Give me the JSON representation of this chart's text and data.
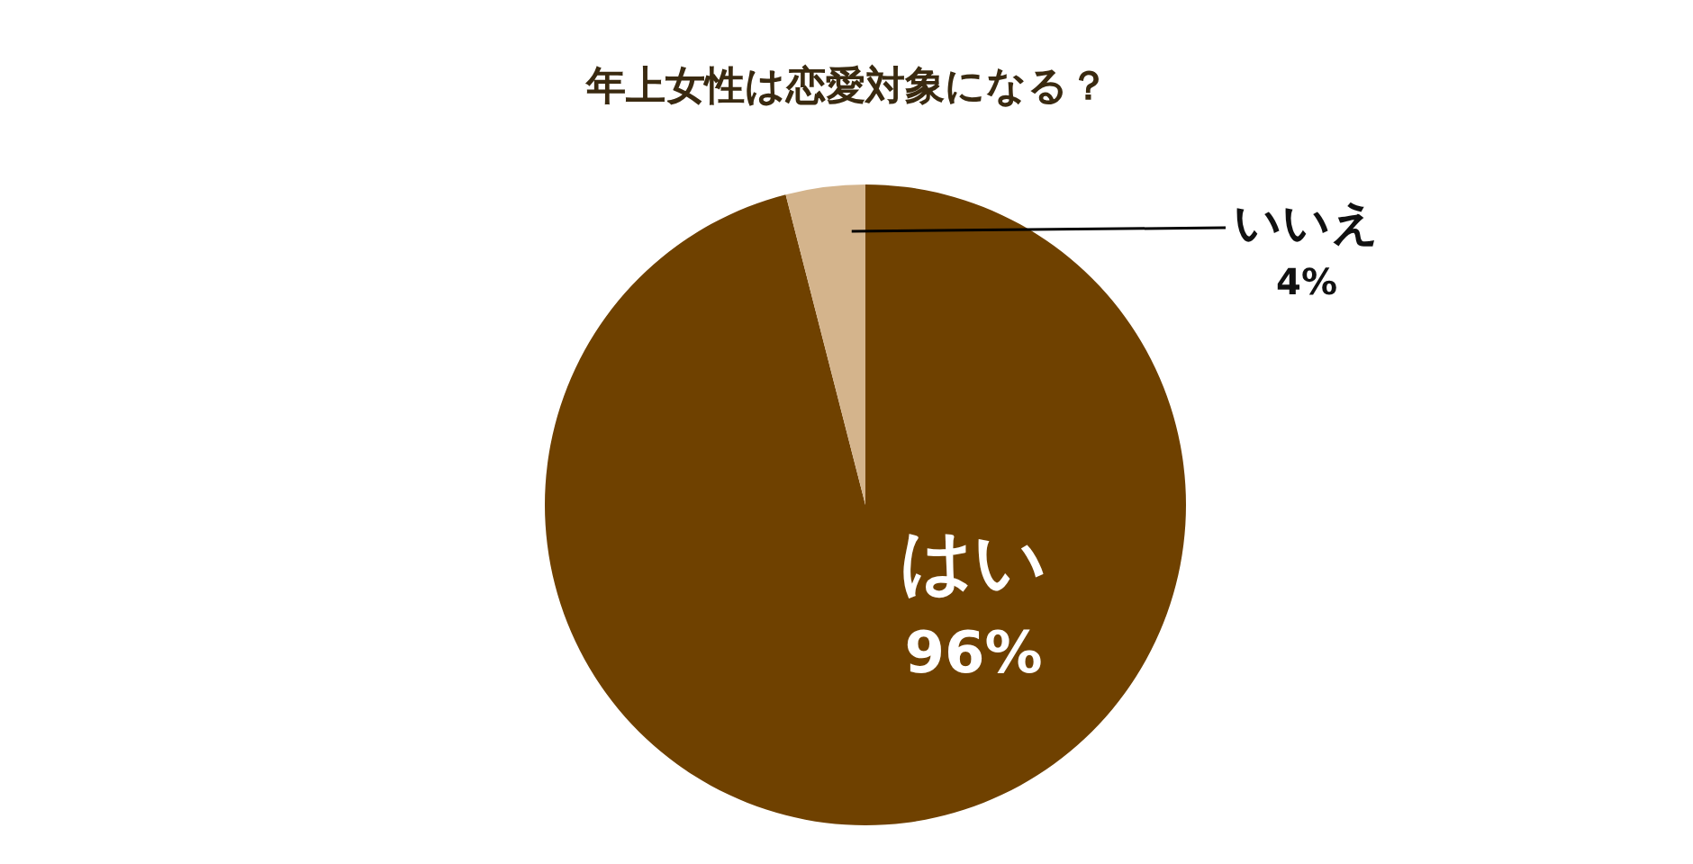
{
  "chart_data": {
    "type": "pie",
    "title": "年上女性は恋愛対象になる？",
    "categories": [
      "はい",
      "いいえ"
    ],
    "values": [
      96,
      4
    ],
    "value_labels": [
      "96%",
      "4%"
    ],
    "colors": [
      "#6f4100",
      "#d4b48c"
    ]
  }
}
